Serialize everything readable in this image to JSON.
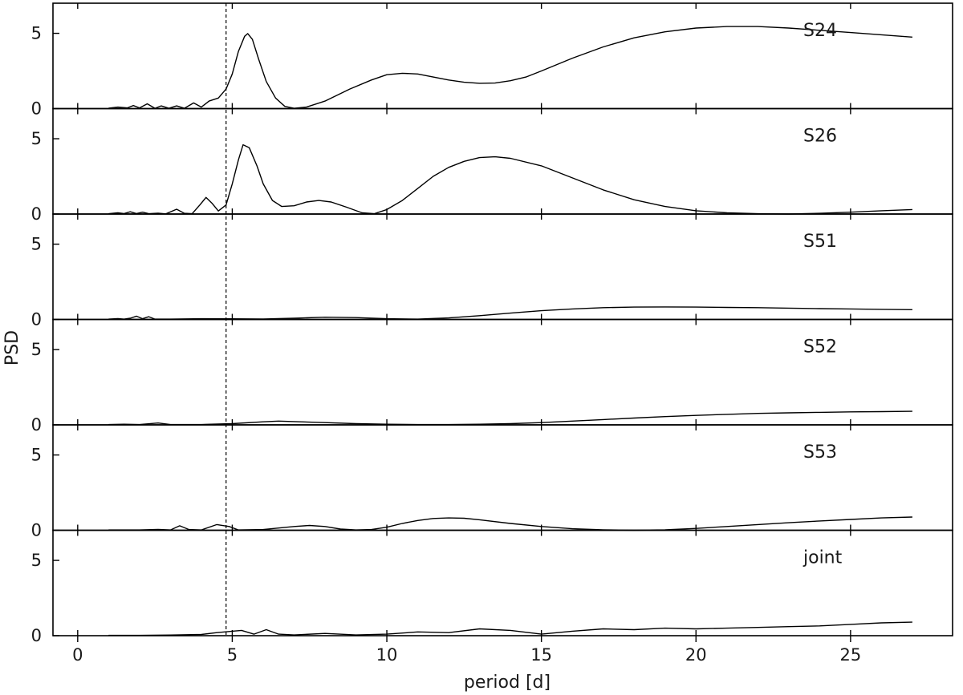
{
  "chart_data": {
    "type": "line",
    "xlabel": "period [d]",
    "ylabel": "PSD",
    "xlim": [
      -0.8,
      28.3
    ],
    "ylim": [
      0,
      7
    ],
    "x_ticks": [
      0,
      5,
      10,
      15,
      20,
      25
    ],
    "y_ticks": [
      0,
      5
    ],
    "dashed_line_x": 4.8,
    "grid": false,
    "series": [
      {
        "name": "S24",
        "points": [
          [
            1.0,
            0.03
          ],
          [
            1.3,
            0.1
          ],
          [
            1.6,
            0.05
          ],
          [
            1.8,
            0.2
          ],
          [
            2.0,
            0.05
          ],
          [
            2.25,
            0.32
          ],
          [
            2.5,
            0.02
          ],
          [
            2.7,
            0.18
          ],
          [
            2.95,
            0.02
          ],
          [
            3.2,
            0.18
          ],
          [
            3.45,
            0.02
          ],
          [
            3.75,
            0.38
          ],
          [
            4.0,
            0.1
          ],
          [
            4.25,
            0.5
          ],
          [
            4.55,
            0.7
          ],
          [
            4.8,
            1.3
          ],
          [
            5.0,
            2.3
          ],
          [
            5.2,
            3.8
          ],
          [
            5.4,
            4.8
          ],
          [
            5.5,
            4.98
          ],
          [
            5.65,
            4.6
          ],
          [
            5.85,
            3.3
          ],
          [
            6.1,
            1.8
          ],
          [
            6.4,
            0.7
          ],
          [
            6.7,
            0.15
          ],
          [
            7.0,
            0.02
          ],
          [
            7.4,
            0.1
          ],
          [
            8.0,
            0.5
          ],
          [
            8.8,
            1.3
          ],
          [
            9.5,
            1.9
          ],
          [
            10.0,
            2.25
          ],
          [
            10.5,
            2.35
          ],
          [
            11.0,
            2.3
          ],
          [
            11.5,
            2.1
          ],
          [
            12.0,
            1.9
          ],
          [
            12.5,
            1.75
          ],
          [
            13.0,
            1.68
          ],
          [
            13.5,
            1.7
          ],
          [
            14.0,
            1.85
          ],
          [
            14.5,
            2.1
          ],
          [
            15.0,
            2.5
          ],
          [
            16.0,
            3.35
          ],
          [
            17.0,
            4.1
          ],
          [
            18.0,
            4.7
          ],
          [
            19.0,
            5.1
          ],
          [
            20.0,
            5.35
          ],
          [
            21.0,
            5.45
          ],
          [
            22.0,
            5.45
          ],
          [
            23.0,
            5.35
          ],
          [
            24.0,
            5.2
          ],
          [
            25.0,
            5.05
          ],
          [
            26.0,
            4.9
          ],
          [
            27.0,
            4.75
          ]
        ]
      },
      {
        "name": "S26",
        "points": [
          [
            1.0,
            0.02
          ],
          [
            1.3,
            0.08
          ],
          [
            1.5,
            0.03
          ],
          [
            1.7,
            0.15
          ],
          [
            1.9,
            0.03
          ],
          [
            2.1,
            0.12
          ],
          [
            2.3,
            0.02
          ],
          [
            2.6,
            0.06
          ],
          [
            2.85,
            0.01
          ],
          [
            3.2,
            0.32
          ],
          [
            3.45,
            0.05
          ],
          [
            3.7,
            0.02
          ],
          [
            3.95,
            0.6
          ],
          [
            4.15,
            1.1
          ],
          [
            4.35,
            0.7
          ],
          [
            4.55,
            0.2
          ],
          [
            4.8,
            0.6
          ],
          [
            5.0,
            2.0
          ],
          [
            5.2,
            3.6
          ],
          [
            5.35,
            4.6
          ],
          [
            5.55,
            4.4
          ],
          [
            5.8,
            3.2
          ],
          [
            6.0,
            2.0
          ],
          [
            6.3,
            0.9
          ],
          [
            6.6,
            0.5
          ],
          [
            7.0,
            0.55
          ],
          [
            7.4,
            0.8
          ],
          [
            7.8,
            0.9
          ],
          [
            8.2,
            0.8
          ],
          [
            8.7,
            0.45
          ],
          [
            9.2,
            0.08
          ],
          [
            9.6,
            0.02
          ],
          [
            10.0,
            0.3
          ],
          [
            10.5,
            0.9
          ],
          [
            11.0,
            1.7
          ],
          [
            11.5,
            2.5
          ],
          [
            12.0,
            3.1
          ],
          [
            12.5,
            3.5
          ],
          [
            13.0,
            3.75
          ],
          [
            13.5,
            3.8
          ],
          [
            14.0,
            3.7
          ],
          [
            15.0,
            3.2
          ],
          [
            16.0,
            2.4
          ],
          [
            17.0,
            1.6
          ],
          [
            18.0,
            0.95
          ],
          [
            19.0,
            0.5
          ],
          [
            20.0,
            0.22
          ],
          [
            21.0,
            0.08
          ],
          [
            22.0,
            0.02
          ],
          [
            23.0,
            0.0
          ],
          [
            24.0,
            0.05
          ],
          [
            25.0,
            0.12
          ],
          [
            26.0,
            0.22
          ],
          [
            27.0,
            0.3
          ]
        ]
      },
      {
        "name": "S51",
        "points": [
          [
            1.0,
            0.02
          ],
          [
            1.3,
            0.06
          ],
          [
            1.5,
            0.02
          ],
          [
            1.7,
            0.08
          ],
          [
            1.9,
            0.22
          ],
          [
            2.1,
            0.05
          ],
          [
            2.3,
            0.18
          ],
          [
            2.5,
            0.02
          ],
          [
            3.0,
            0.02
          ],
          [
            4.0,
            0.05
          ],
          [
            5.0,
            0.04
          ],
          [
            6.0,
            0.03
          ],
          [
            7.0,
            0.08
          ],
          [
            8.0,
            0.15
          ],
          [
            9.0,
            0.12
          ],
          [
            10.0,
            0.05
          ],
          [
            11.0,
            0.02
          ],
          [
            12.0,
            0.1
          ],
          [
            13.0,
            0.25
          ],
          [
            14.0,
            0.42
          ],
          [
            15.0,
            0.58
          ],
          [
            16.0,
            0.7
          ],
          [
            17.0,
            0.78
          ],
          [
            18.0,
            0.82
          ],
          [
            19.0,
            0.83
          ],
          [
            20.0,
            0.82
          ],
          [
            21.0,
            0.8
          ],
          [
            22.0,
            0.78
          ],
          [
            23.0,
            0.75
          ],
          [
            24.0,
            0.72
          ],
          [
            25.0,
            0.7
          ],
          [
            26.0,
            0.67
          ],
          [
            27.0,
            0.65
          ]
        ]
      },
      {
        "name": "S52",
        "points": [
          [
            1.0,
            0.02
          ],
          [
            1.5,
            0.04
          ],
          [
            2.0,
            0.02
          ],
          [
            2.6,
            0.12
          ],
          [
            3.0,
            0.02
          ],
          [
            4.0,
            0.02
          ],
          [
            5.0,
            0.08
          ],
          [
            6.0,
            0.2
          ],
          [
            6.5,
            0.25
          ],
          [
            7.0,
            0.22
          ],
          [
            8.0,
            0.15
          ],
          [
            9.0,
            0.08
          ],
          [
            10.0,
            0.04
          ],
          [
            11.0,
            0.02
          ],
          [
            12.0,
            0.02
          ],
          [
            13.0,
            0.04
          ],
          [
            14.0,
            0.08
          ],
          [
            15.0,
            0.15
          ],
          [
            16.0,
            0.25
          ],
          [
            17.0,
            0.35
          ],
          [
            18.0,
            0.45
          ],
          [
            19.0,
            0.55
          ],
          [
            20.0,
            0.63
          ],
          [
            21.0,
            0.7
          ],
          [
            22.0,
            0.76
          ],
          [
            23.0,
            0.8
          ],
          [
            24.0,
            0.83
          ],
          [
            25.0,
            0.86
          ],
          [
            26.0,
            0.88
          ],
          [
            27.0,
            0.9
          ]
        ]
      },
      {
        "name": "S53",
        "points": [
          [
            1.0,
            0.02
          ],
          [
            2.0,
            0.02
          ],
          [
            2.6,
            0.06
          ],
          [
            3.0,
            0.02
          ],
          [
            3.3,
            0.3
          ],
          [
            3.6,
            0.05
          ],
          [
            4.0,
            0.02
          ],
          [
            4.5,
            0.38
          ],
          [
            4.9,
            0.25
          ],
          [
            5.2,
            0.02
          ],
          [
            6.0,
            0.05
          ],
          [
            7.0,
            0.25
          ],
          [
            7.5,
            0.32
          ],
          [
            8.0,
            0.25
          ],
          [
            8.5,
            0.08
          ],
          [
            9.0,
            0.02
          ],
          [
            9.5,
            0.05
          ],
          [
            10.0,
            0.2
          ],
          [
            10.5,
            0.45
          ],
          [
            11.0,
            0.65
          ],
          [
            11.5,
            0.78
          ],
          [
            12.0,
            0.82
          ],
          [
            12.5,
            0.8
          ],
          [
            13.0,
            0.7
          ],
          [
            14.0,
            0.45
          ],
          [
            15.0,
            0.25
          ],
          [
            16.0,
            0.1
          ],
          [
            17.0,
            0.03
          ],
          [
            18.0,
            0.0
          ],
          [
            19.0,
            0.03
          ],
          [
            20.0,
            0.12
          ],
          [
            21.0,
            0.25
          ],
          [
            22.0,
            0.38
          ],
          [
            23.0,
            0.5
          ],
          [
            24.0,
            0.62
          ],
          [
            25.0,
            0.72
          ],
          [
            26.0,
            0.82
          ],
          [
            27.0,
            0.88
          ]
        ]
      },
      {
        "name": "joint",
        "points": [
          [
            1.0,
            0.02
          ],
          [
            2.0,
            0.02
          ],
          [
            3.0,
            0.04
          ],
          [
            4.0,
            0.08
          ],
          [
            4.5,
            0.2
          ],
          [
            5.0,
            0.3
          ],
          [
            5.3,
            0.35
          ],
          [
            5.7,
            0.1
          ],
          [
            6.1,
            0.4
          ],
          [
            6.5,
            0.1
          ],
          [
            7.0,
            0.05
          ],
          [
            8.0,
            0.15
          ],
          [
            9.0,
            0.05
          ],
          [
            10.0,
            0.1
          ],
          [
            11.0,
            0.25
          ],
          [
            12.0,
            0.2
          ],
          [
            13.0,
            0.45
          ],
          [
            14.0,
            0.35
          ],
          [
            15.0,
            0.1
          ],
          [
            16.0,
            0.3
          ],
          [
            17.0,
            0.45
          ],
          [
            18.0,
            0.4
          ],
          [
            19.0,
            0.5
          ],
          [
            20.0,
            0.45
          ],
          [
            21.0,
            0.5
          ],
          [
            22.0,
            0.55
          ],
          [
            23.0,
            0.6
          ],
          [
            24.0,
            0.65
          ],
          [
            25.0,
            0.75
          ],
          [
            26.0,
            0.85
          ],
          [
            27.0,
            0.9
          ]
        ]
      }
    ]
  }
}
